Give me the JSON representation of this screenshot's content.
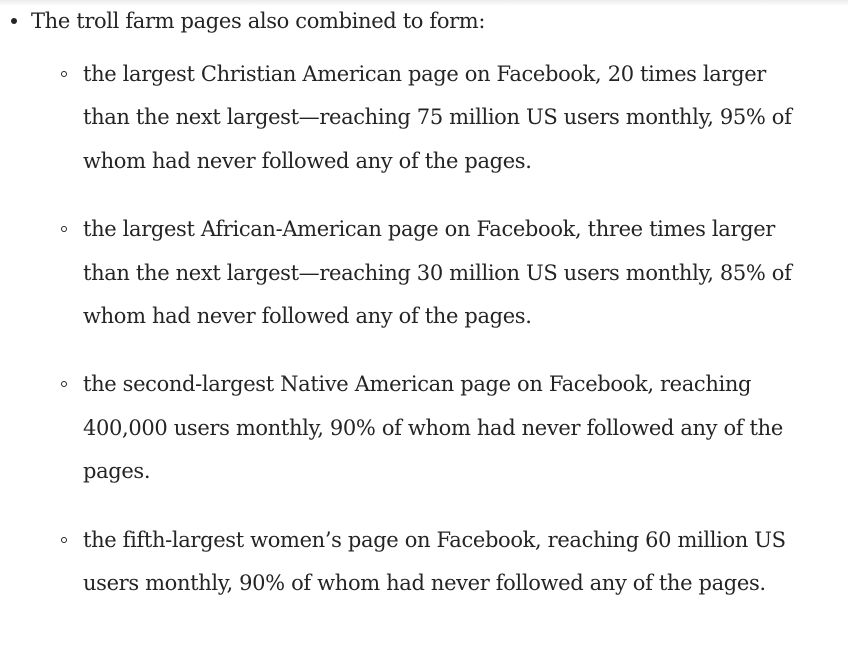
{
  "article": {
    "list_intro": "The troll farm pages also combined to form:",
    "items": [
      {
        "text": "the largest Christian American page on Facebook, 20 times larger than the next largest—reaching 75 million US users monthly, 95% of whom had never followed any of the pages."
      },
      {
        "text": "the largest African-American page on Facebook, three times larger than the next largest—reaching 30 million US users monthly, 85% of whom had never followed any of the pages."
      },
      {
        "text": "the second-largest Native American page on Facebook, reaching 400,000 users monthly, 90% of whom had never followed any of the pages."
      },
      {
        "text": "the fifth-largest women’s page on Facebook, reaching 60 million US users monthly, 90% of whom had never followed any of the pages."
      }
    ]
  }
}
